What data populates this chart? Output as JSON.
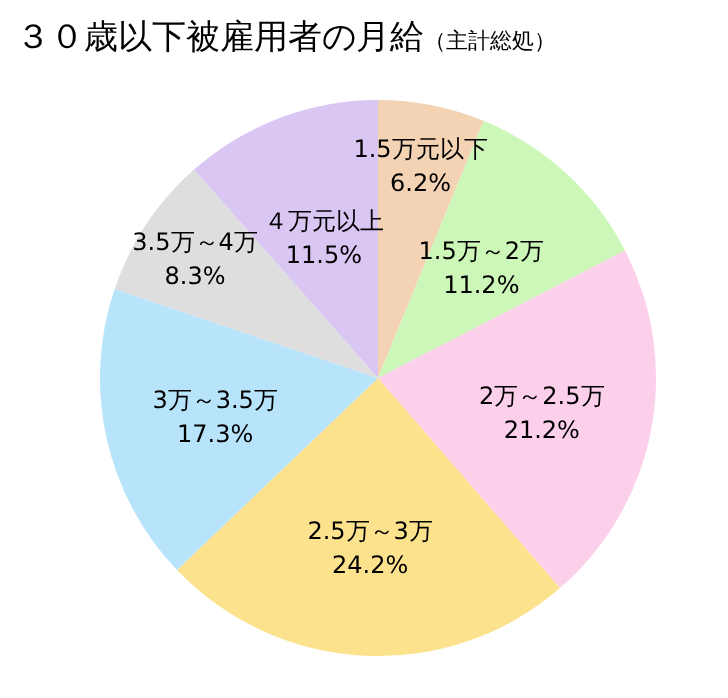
{
  "chart_data": {
    "type": "pie",
    "title": "３０歳以下被雇用者の月給",
    "subtitle": "（主計総処）",
    "categories": [
      "1.5万元以下",
      "1.5万～2万",
      "2万～2.5万",
      "2.5万～3万",
      "3万～3.5万",
      "3.5万～4万",
      "４万元以上"
    ],
    "values": [
      6.2,
      11.2,
      21.2,
      24.2,
      17.3,
      8.3,
      11.5
    ],
    "colors": [
      "#f3d3b4",
      "#cdf7b8",
      "#fcd0ea",
      "#fde28e",
      "#b7e3fb",
      "#dedede",
      "#dac6f3"
    ],
    "value_labels": [
      "6.2%",
      "11.2%",
      "21.2%",
      "24.2%",
      "17.3%",
      "8.3%",
      "11.5%"
    ]
  }
}
